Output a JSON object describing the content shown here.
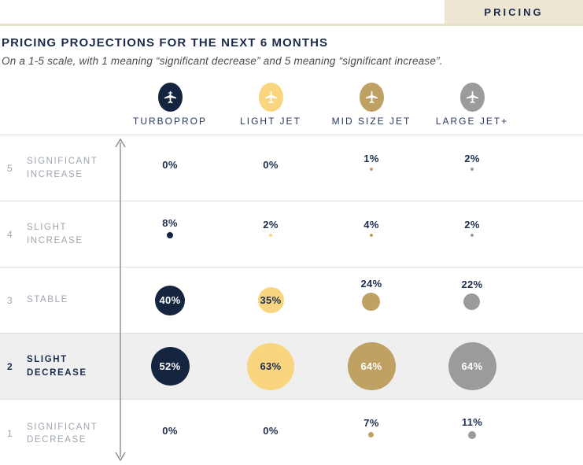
{
  "header": {
    "tab_label": "PRICING"
  },
  "title": "PRICING PROJECTIONS FOR THE NEXT 6 MONTHS",
  "subtitle": "On a 1-5 scale, with 1 meaning “significant decrease” and 5 meaning “significant increase”.",
  "palette": {
    "navy": "#15253F",
    "light_gold": "#F9D57F",
    "gold": "#BFA263",
    "gray": "#9B9B9D",
    "tab_background": "#ECE6D2",
    "tab_rule": "#E9E2CB",
    "row_highlight": "#EFEFEF",
    "divider": "#DEDEDE",
    "row_label_gray": "#9FA6AE",
    "text_navy": "#1D2D50"
  },
  "chart_data": {
    "type": "scatter",
    "subtype": "bubble-matrix",
    "title": "PRICING PROJECTIONS FOR THE NEXT 6 MONTHS",
    "value_unit": "%",
    "scale_range": [
      1,
      5
    ],
    "row_order": "top_to_bottom_scale_5_to_1",
    "axis_arrow": "vertical-double-headed",
    "grid": "horizontal-dividers",
    "columns": [
      {
        "label": "TURBOPROP",
        "icon": "turboprop-plane-icon",
        "color": "#15253F",
        "text_inside": "#FFFFFF"
      },
      {
        "label": "LIGHT JET",
        "icon": "light-jet-plane-icon",
        "color": "#F9D57F",
        "text_inside": "#1D2D50"
      },
      {
        "label": "MID SIZE JET",
        "icon": "mid-size-jet-plane-icon",
        "color": "#BFA263",
        "text_inside": "#FFFFFF"
      },
      {
        "label": "LARGE JET+",
        "icon": "large-jet-plane-icon",
        "color": "#9B9B9D",
        "text_inside": "#FFFFFF"
      }
    ],
    "rows": [
      {
        "scale": 5,
        "label": "SIGNIFICANT INCREASE",
        "highlight": false
      },
      {
        "scale": 4,
        "label": "SLIGHT INCREASE",
        "highlight": false
      },
      {
        "scale": 3,
        "label": "STABLE",
        "highlight": false
      },
      {
        "scale": 2,
        "label": "SLIGHT DECREASE",
        "highlight": true
      },
      {
        "scale": 1,
        "label": "SIGNIFICANT DECREASE",
        "highlight": false
      }
    ],
    "series": [
      {
        "name": "TURBOPROP",
        "values": [
          0,
          8,
          40,
          52,
          0
        ]
      },
      {
        "name": "LIGHT JET",
        "values": [
          0,
          2,
          35,
          63,
          0
        ]
      },
      {
        "name": "MID SIZE JET",
        "values": [
          1,
          4,
          24,
          64,
          7
        ]
      },
      {
        "name": "LARGE JET+",
        "values": [
          2,
          2,
          22,
          64,
          11
        ]
      }
    ]
  }
}
